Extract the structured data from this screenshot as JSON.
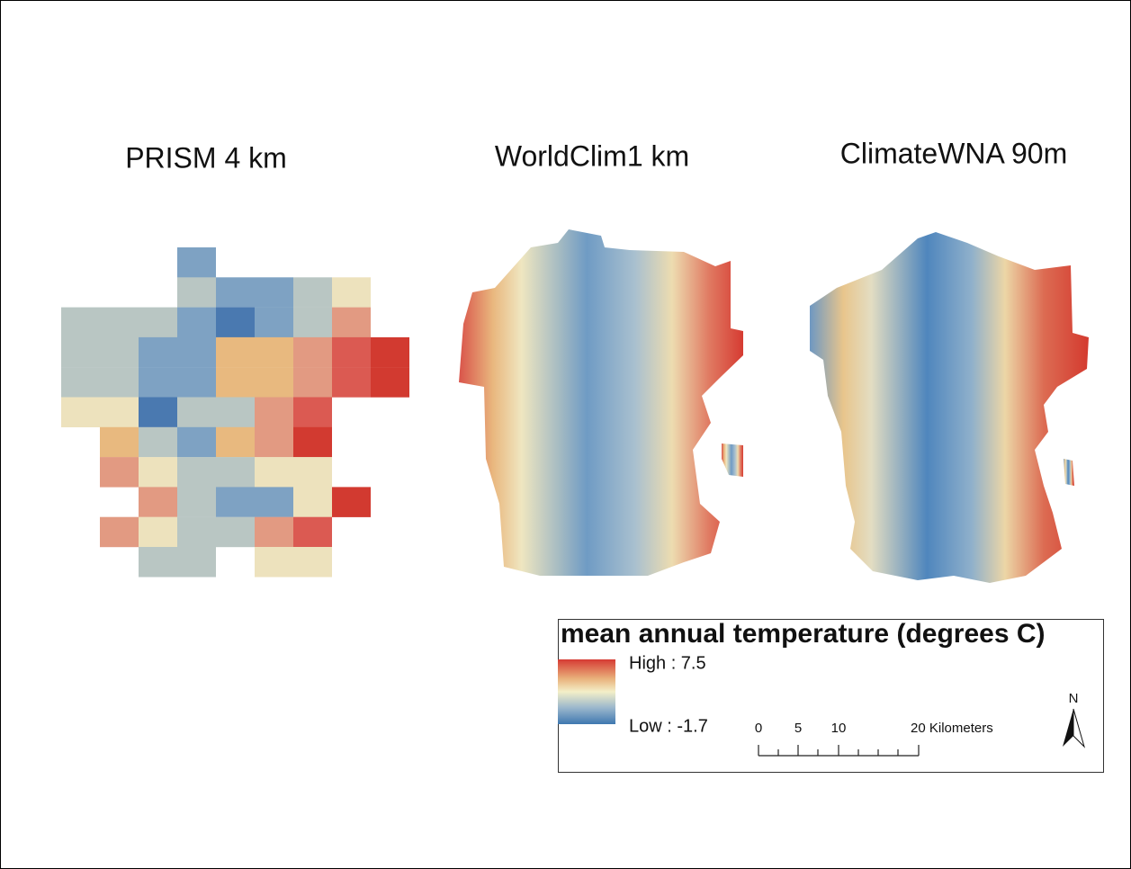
{
  "panels": [
    {
      "title": "PRISM 4 km"
    },
    {
      "title": "WorldClim1 km"
    },
    {
      "title": "ClimateWNA 90m"
    }
  ],
  "legend": {
    "title": "mean annual temperature (degrees C)",
    "high": "High : 7.5",
    "low": "Low : -1.7"
  },
  "scale_bar": {
    "labels": [
      "0",
      "5",
      "10",
      "20 Kilometers"
    ]
  },
  "north_arrow": {
    "label": "N"
  }
}
